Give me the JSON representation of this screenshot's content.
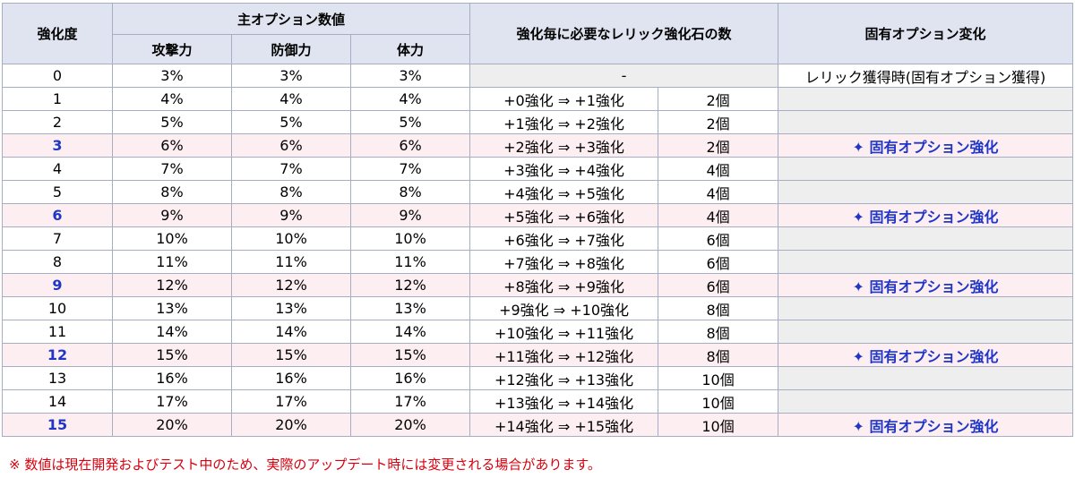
{
  "headers": {
    "level": "強化度",
    "main_option": "主オプション数値",
    "attack": "攻撃力",
    "defense": "防御力",
    "hp": "体力",
    "stones": "強化毎に必要なレリック強化石の数",
    "unique_change": "固有オプション変化"
  },
  "rows": [
    {
      "level": "0",
      "atk": "3%",
      "def": "3%",
      "hp": "3%",
      "step": "-",
      "count": "",
      "change": "レリック獲得時(固有オプション獲得)"
    },
    {
      "level": "1",
      "atk": "4%",
      "def": "4%",
      "hp": "4%",
      "step": "+0強化 ⇒ +1強化",
      "count": "2個",
      "change": ""
    },
    {
      "level": "2",
      "atk": "5%",
      "def": "5%",
      "hp": "5%",
      "step": "+1強化 ⇒ +2強化",
      "count": "2個",
      "change": ""
    },
    {
      "level": "3",
      "atk": "6%",
      "def": "6%",
      "hp": "6%",
      "step": "+2強化 ⇒ +3強化",
      "count": "2個",
      "change": "✦ 固有オプション強化"
    },
    {
      "level": "4",
      "atk": "7%",
      "def": "7%",
      "hp": "7%",
      "step": "+3強化 ⇒ +4強化",
      "count": "4個",
      "change": ""
    },
    {
      "level": "5",
      "atk": "8%",
      "def": "8%",
      "hp": "8%",
      "step": "+4強化 ⇒ +5強化",
      "count": "4個",
      "change": ""
    },
    {
      "level": "6",
      "atk": "9%",
      "def": "9%",
      "hp": "9%",
      "step": "+5強化 ⇒ +6強化",
      "count": "4個",
      "change": "✦ 固有オプション強化"
    },
    {
      "level": "7",
      "atk": "10%",
      "def": "10%",
      "hp": "10%",
      "step": "+6強化 ⇒ +7強化",
      "count": "6個",
      "change": ""
    },
    {
      "level": "8",
      "atk": "11%",
      "def": "11%",
      "hp": "11%",
      "step": "+7強化 ⇒ +8強化",
      "count": "6個",
      "change": ""
    },
    {
      "level": "9",
      "atk": "12%",
      "def": "12%",
      "hp": "12%",
      "step": "+8強化 ⇒ +9強化",
      "count": "6個",
      "change": "✦ 固有オプション強化"
    },
    {
      "level": "10",
      "atk": "13%",
      "def": "13%",
      "hp": "13%",
      "step": "+9強化 ⇒ +10強化",
      "count": "8個",
      "change": ""
    },
    {
      "level": "11",
      "atk": "14%",
      "def": "14%",
      "hp": "14%",
      "step": "+10強化 ⇒ +11強化",
      "count": "8個",
      "change": ""
    },
    {
      "level": "12",
      "atk": "15%",
      "def": "15%",
      "hp": "15%",
      "step": "+11強化 ⇒ +12強化",
      "count": "8個",
      "change": "✦ 固有オプション強化"
    },
    {
      "level": "13",
      "atk": "16%",
      "def": "16%",
      "hp": "16%",
      "step": "+12強化 ⇒ +13強化",
      "count": "10個",
      "change": ""
    },
    {
      "level": "14",
      "atk": "17%",
      "def": "17%",
      "hp": "17%",
      "step": "+13強化 ⇒ +14強化",
      "count": "10個",
      "change": ""
    },
    {
      "level": "15",
      "atk": "20%",
      "def": "20%",
      "hp": "20%",
      "step": "+14強化 ⇒ +15強化",
      "count": "10個",
      "change": "✦ 固有オプション強化"
    }
  ],
  "note": "※ 数値は現在開発およびテスト中のため、実際のアップデート時には変更される場合があります。",
  "colors": {
    "header_bg": "#dfe4f0",
    "highlight_row_bg": "#fdeef1",
    "highlight_text": "#1f36c7",
    "note_text": "#d8000e",
    "gray_cell": "#eeeeee"
  }
}
